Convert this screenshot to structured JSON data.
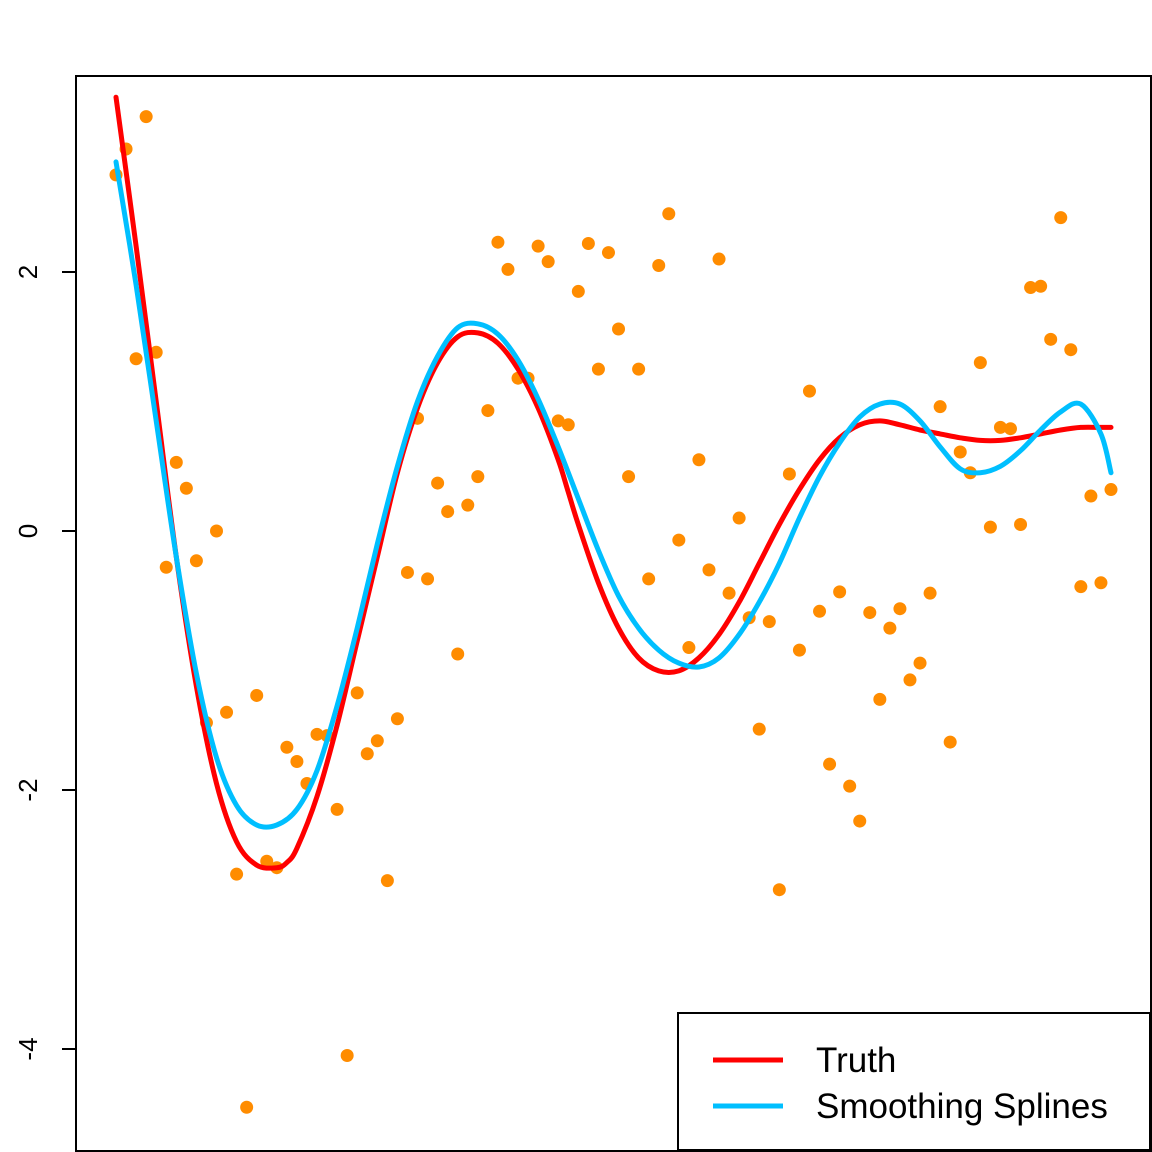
{
  "chart_data": {
    "type": "scatter",
    "title": "",
    "xlabel": "",
    "ylabel": "",
    "xlim": [
      0,
      100
    ],
    "ylim": [
      -4.7,
      3.5
    ],
    "grid": false,
    "y_ticks": [
      {
        "value": -4,
        "label": "-4"
      },
      {
        "value": -2,
        "label": "-2"
      },
      {
        "value": 0,
        "label": "0"
      },
      {
        "value": 2,
        "label": "2"
      }
    ],
    "colors": {
      "points": "#FF8C00",
      "truth": "#FF0000",
      "spline": "#00BFFF",
      "axis": "#000000"
    },
    "legend": {
      "position": "bottom-right",
      "entries": [
        {
          "label": "Truth",
          "color": "#FF0000"
        },
        {
          "label": "Smoothing Splines",
          "color": "#00BFFF"
        }
      ]
    },
    "points": [
      {
        "x": 0,
        "y": 2.75
      },
      {
        "x": 1,
        "y": 2.95
      },
      {
        "x": 2,
        "y": 1.33
      },
      {
        "x": 3,
        "y": 3.2
      },
      {
        "x": 4,
        "y": 1.38
      },
      {
        "x": 5,
        "y": -0.28
      },
      {
        "x": 6,
        "y": 0.53
      },
      {
        "x": 7,
        "y": 0.33
      },
      {
        "x": 8,
        "y": -0.23
      },
      {
        "x": 9,
        "y": -1.48
      },
      {
        "x": 10,
        "y": 0.0
      },
      {
        "x": 11,
        "y": -1.4
      },
      {
        "x": 12,
        "y": -2.65
      },
      {
        "x": 13,
        "y": -4.45
      },
      {
        "x": 14,
        "y": -1.27
      },
      {
        "x": 15,
        "y": -2.55
      },
      {
        "x": 16,
        "y": -2.6
      },
      {
        "x": 17,
        "y": -1.67
      },
      {
        "x": 18,
        "y": -1.78
      },
      {
        "x": 19,
        "y": -1.95
      },
      {
        "x": 20,
        "y": -1.57
      },
      {
        "x": 21,
        "y": -1.58
      },
      {
        "x": 22,
        "y": -2.15
      },
      {
        "x": 23,
        "y": -4.05
      },
      {
        "x": 24,
        "y": -1.25
      },
      {
        "x": 25,
        "y": -1.72
      },
      {
        "x": 26,
        "y": -1.62
      },
      {
        "x": 27,
        "y": -2.7
      },
      {
        "x": 28,
        "y": -1.45
      },
      {
        "x": 29,
        "y": -0.32
      },
      {
        "x": 30,
        "y": 0.87
      },
      {
        "x": 31,
        "y": -0.37
      },
      {
        "x": 32,
        "y": 0.37
      },
      {
        "x": 33,
        "y": 0.15
      },
      {
        "x": 34,
        "y": -0.95
      },
      {
        "x": 35,
        "y": 0.2
      },
      {
        "x": 36,
        "y": 0.42
      },
      {
        "x": 37,
        "y": 0.93
      },
      {
        "x": 38,
        "y": 2.23
      },
      {
        "x": 39,
        "y": 2.02
      },
      {
        "x": 40,
        "y": 1.18
      },
      {
        "x": 41,
        "y": 1.18
      },
      {
        "x": 42,
        "y": 2.2
      },
      {
        "x": 43,
        "y": 2.08
      },
      {
        "x": 44,
        "y": 0.85
      },
      {
        "x": 45,
        "y": 0.82
      },
      {
        "x": 46,
        "y": 1.85
      },
      {
        "x": 47,
        "y": 2.22
      },
      {
        "x": 48,
        "y": 1.25
      },
      {
        "x": 49,
        "y": 2.15
      },
      {
        "x": 50,
        "y": 1.56
      },
      {
        "x": 51,
        "y": 0.42
      },
      {
        "x": 52,
        "y": 1.25
      },
      {
        "x": 53,
        "y": -0.37
      },
      {
        "x": 54,
        "y": 2.05
      },
      {
        "x": 55,
        "y": 2.45
      },
      {
        "x": 56,
        "y": -0.07
      },
      {
        "x": 57,
        "y": -0.9
      },
      {
        "x": 58,
        "y": 0.55
      },
      {
        "x": 59,
        "y": -0.3
      },
      {
        "x": 60,
        "y": 2.1
      },
      {
        "x": 61,
        "y": -0.48
      },
      {
        "x": 62,
        "y": 0.1
      },
      {
        "x": 63,
        "y": -0.67
      },
      {
        "x": 64,
        "y": -1.53
      },
      {
        "x": 65,
        "y": -0.7
      },
      {
        "x": 66,
        "y": -2.77
      },
      {
        "x": 67,
        "y": 0.44
      },
      {
        "x": 68,
        "y": -0.92
      },
      {
        "x": 69,
        "y": 1.08
      },
      {
        "x": 70,
        "y": -0.62
      },
      {
        "x": 71,
        "y": -1.8
      },
      {
        "x": 72,
        "y": -0.47
      },
      {
        "x": 73,
        "y": -1.97
      },
      {
        "x": 74,
        "y": -2.24
      },
      {
        "x": 75,
        "y": -0.63
      },
      {
        "x": 76,
        "y": -1.3
      },
      {
        "x": 77,
        "y": -0.75
      },
      {
        "x": 78,
        "y": -0.6
      },
      {
        "x": 79,
        "y": -1.15
      },
      {
        "x": 80,
        "y": -1.02
      },
      {
        "x": 81,
        "y": -0.48
      },
      {
        "x": 82,
        "y": 0.96
      },
      {
        "x": 83,
        "y": -1.63
      },
      {
        "x": 84,
        "y": 0.61
      },
      {
        "x": 85,
        "y": 0.45
      },
      {
        "x": 86,
        "y": 1.3
      },
      {
        "x": 87,
        "y": 0.03
      },
      {
        "x": 88,
        "y": 0.8
      },
      {
        "x": 89,
        "y": 0.79
      },
      {
        "x": 90,
        "y": 0.05
      },
      {
        "x": 91,
        "y": 1.88
      },
      {
        "x": 92,
        "y": 1.89
      },
      {
        "x": 93,
        "y": 1.48
      },
      {
        "x": 94,
        "y": 2.42
      },
      {
        "x": 95,
        "y": 1.4
      },
      {
        "x": 96,
        "y": -0.43
      },
      {
        "x": 97,
        "y": 0.27
      },
      {
        "x": 98,
        "y": -0.4
      },
      {
        "x": 99,
        "y": 0.32
      }
    ],
    "series": [
      {
        "name": "Truth",
        "color": "#FF0000",
        "x": [
          0,
          2,
          4,
          6,
          8,
          10,
          12,
          14,
          16,
          17,
          18,
          20,
          22,
          24,
          26,
          28,
          30,
          32,
          34,
          36,
          38,
          40,
          42,
          44,
          45,
          46,
          48,
          50,
          52,
          54,
          56,
          58,
          60,
          62,
          64,
          66,
          68,
          70,
          72,
          74,
          76,
          78,
          80,
          82,
          84,
          86,
          88,
          90,
          92,
          94,
          96,
          98,
          99
        ],
        "y": [
          3.35,
          2.2,
          1.0,
          -0.2,
          -1.2,
          -1.95,
          -2.4,
          -2.58,
          -2.6,
          -2.56,
          -2.45,
          -2.05,
          -1.5,
          -0.85,
          -0.2,
          0.45,
          0.95,
          1.3,
          1.5,
          1.53,
          1.45,
          1.25,
          0.95,
          0.55,
          0.3,
          0.05,
          -0.4,
          -0.75,
          -0.98,
          -1.08,
          -1.08,
          -0.98,
          -0.8,
          -0.55,
          -0.25,
          0.05,
          0.32,
          0.55,
          0.72,
          0.82,
          0.85,
          0.82,
          0.78,
          0.75,
          0.72,
          0.7,
          0.7,
          0.72,
          0.75,
          0.78,
          0.8,
          0.8,
          0.8
        ]
      },
      {
        "name": "Smoothing Splines",
        "color": "#00BFFF",
        "x": [
          0,
          2,
          4,
          6,
          8,
          10,
          12,
          14,
          16,
          18,
          20,
          22,
          24,
          26,
          28,
          30,
          32,
          34,
          36,
          38,
          40,
          42,
          44,
          46,
          48,
          50,
          52,
          54,
          56,
          58,
          60,
          62,
          64,
          66,
          68,
          70,
          72,
          74,
          76,
          78,
          80,
          82,
          84,
          86,
          88,
          90,
          92,
          94,
          96,
          98,
          99
        ],
        "y": [
          2.85,
          1.9,
          0.85,
          -0.2,
          -1.1,
          -1.75,
          -2.12,
          -2.27,
          -2.27,
          -2.15,
          -1.85,
          -1.35,
          -0.75,
          -0.1,
          0.5,
          1.0,
          1.35,
          1.57,
          1.6,
          1.52,
          1.32,
          1.02,
          0.65,
          0.25,
          -0.15,
          -0.5,
          -0.75,
          -0.92,
          -1.02,
          -1.05,
          -0.98,
          -0.8,
          -0.55,
          -0.25,
          0.1,
          0.42,
          0.68,
          0.88,
          0.98,
          0.98,
          0.85,
          0.65,
          0.48,
          0.45,
          0.5,
          0.62,
          0.78,
          0.92,
          0.98,
          0.75,
          0.45
        ]
      }
    ]
  }
}
